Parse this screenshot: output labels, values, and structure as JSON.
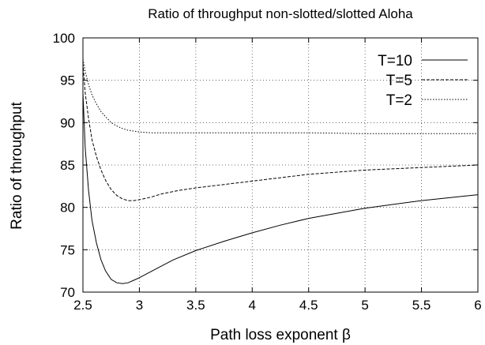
{
  "chart_data": {
    "type": "line",
    "title": "Ratio of throughput non-slotted/slotted Aloha",
    "xlabel": "Path loss exponent β",
    "ylabel": "Ratio of throughput",
    "xlim": [
      2.5,
      6
    ],
    "ylim": [
      70,
      100
    ],
    "x_ticks": [
      "2.5",
      "3",
      "3.5",
      "4",
      "4.5",
      "5",
      "5.5",
      "6"
    ],
    "y_ticks": [
      "70",
      "75",
      "80",
      "85",
      "90",
      "95",
      "100"
    ],
    "grid": true,
    "legend_position": "top-right",
    "series": [
      {
        "name": "T=10",
        "dash": "solid",
        "x": [
          2.5,
          2.52,
          2.55,
          2.58,
          2.62,
          2.66,
          2.7,
          2.75,
          2.8,
          2.85,
          2.9,
          2.95,
          3.0,
          3.1,
          3.2,
          3.3,
          3.5,
          3.75,
          4.0,
          4.25,
          4.5,
          5.0,
          5.5,
          6.0
        ],
        "y": [
          93.5,
          87,
          82,
          78.5,
          75.8,
          73.8,
          72.5,
          71.5,
          71.1,
          71.0,
          71.1,
          71.4,
          71.7,
          72.4,
          73.1,
          73.8,
          74.9,
          76.0,
          77.0,
          77.9,
          78.7,
          79.9,
          80.8,
          81.5
        ]
      },
      {
        "name": "T=5",
        "dash": "dashed",
        "x": [
          2.5,
          2.52,
          2.55,
          2.58,
          2.62,
          2.66,
          2.7,
          2.75,
          2.8,
          2.85,
          2.9,
          2.95,
          3.0,
          3.1,
          3.2,
          3.35,
          3.5,
          4.0,
          4.5,
          5.0,
          5.5,
          6.0
        ],
        "y": [
          97,
          93.5,
          90.5,
          88,
          86,
          84.4,
          83.2,
          82.1,
          81.4,
          81.0,
          80.8,
          80.8,
          80.9,
          81.2,
          81.6,
          82.0,
          82.3,
          83.1,
          83.9,
          84.4,
          84.7,
          85.0
        ]
      },
      {
        "name": "T=2",
        "dash": "dotted",
        "x": [
          2.5,
          2.52,
          2.55,
          2.58,
          2.62,
          2.66,
          2.7,
          2.75,
          2.8,
          2.85,
          2.9,
          2.95,
          3.0,
          3.1,
          3.2,
          3.5,
          4.0,
          4.5,
          5.0,
          5.5,
          6.0
        ],
        "y": [
          97.5,
          96,
          94.5,
          93.3,
          92.2,
          91.3,
          90.7,
          90.0,
          89.6,
          89.3,
          89.1,
          89.0,
          88.9,
          88.8,
          88.8,
          88.8,
          88.8,
          88.8,
          88.7,
          88.7,
          88.7
        ]
      }
    ]
  }
}
